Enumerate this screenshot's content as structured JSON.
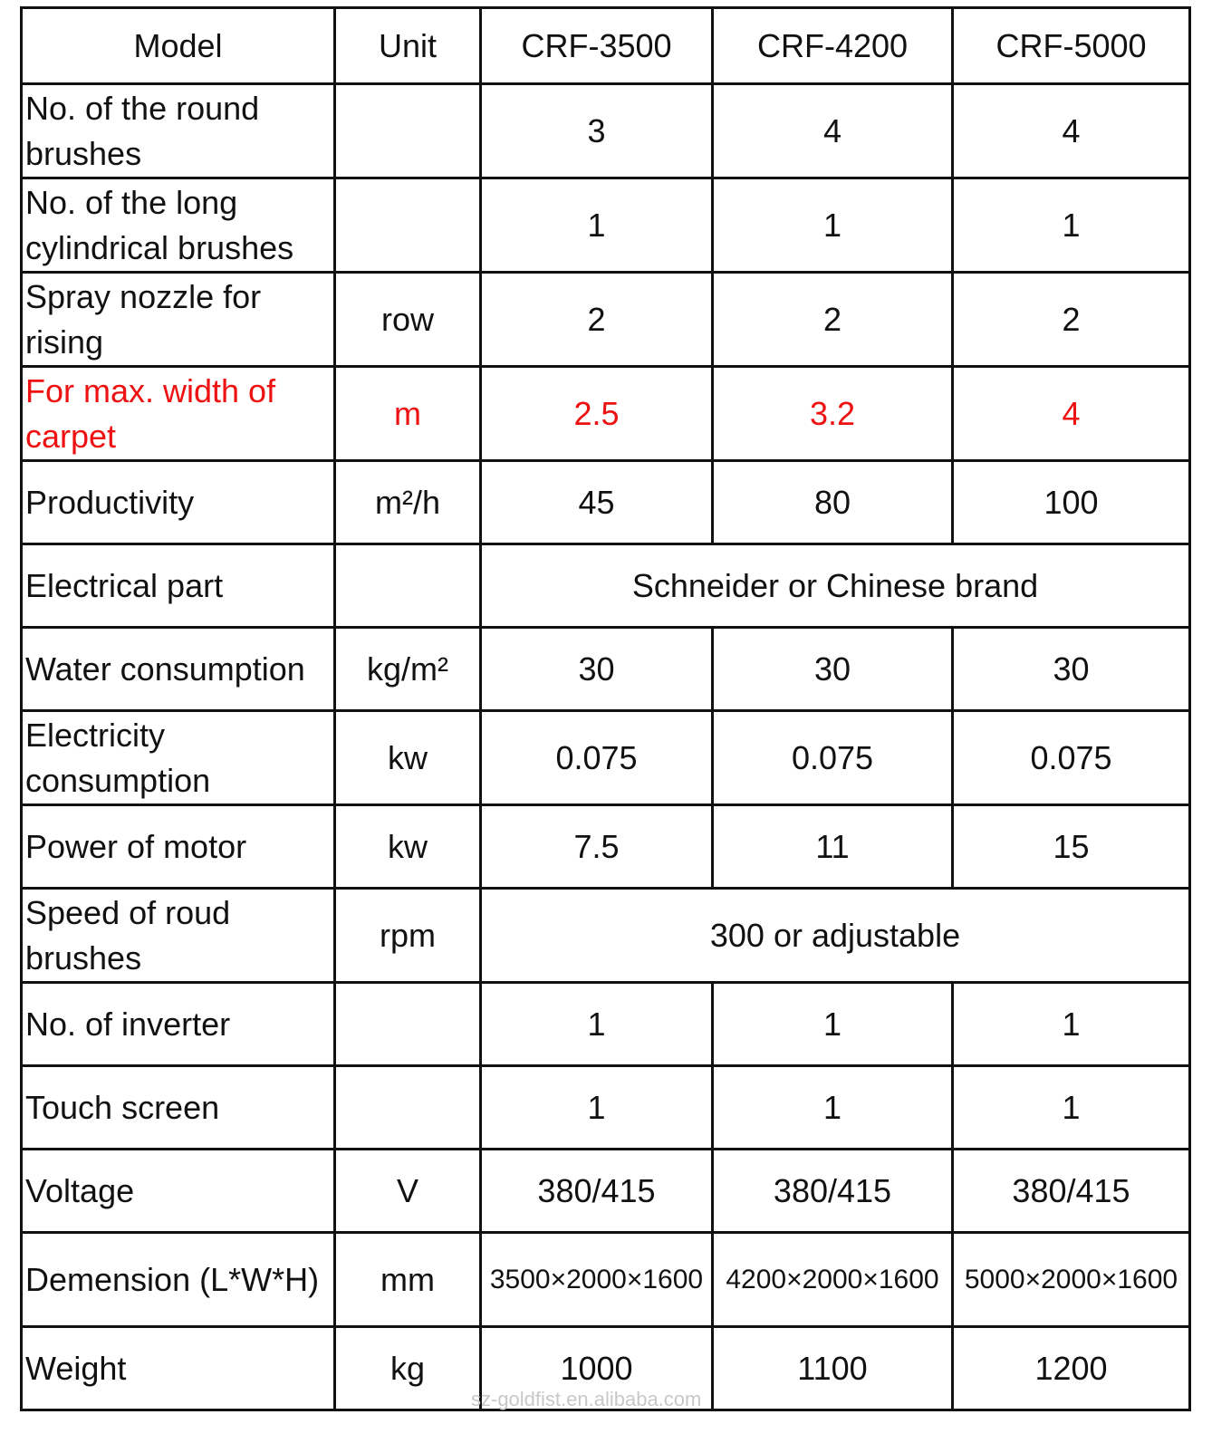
{
  "table": {
    "columns": [
      "Model",
      "Unit",
      "CRF-3500",
      "CRF-4200",
      "CRF-5000"
    ],
    "rows": [
      {
        "param": "No. of the round brushes",
        "unit": "",
        "values": [
          "3",
          "4",
          "4"
        ]
      },
      {
        "param": "No. of the long cylindrical brushes",
        "unit": "",
        "values": [
          "1",
          "1",
          "1"
        ]
      },
      {
        "param": "Spray nozzle for rising",
        "unit": "row",
        "values": [
          "2",
          "2",
          "2"
        ]
      },
      {
        "param": "For max. width of carpet",
        "unit": "m",
        "values": [
          "2.5",
          "3.2",
          "4"
        ],
        "highlight_color": "#ee1111"
      },
      {
        "param": "Productivity",
        "unit": "m²/h",
        "values": [
          "45",
          "80",
          "100"
        ]
      },
      {
        "param": "Electrical part",
        "unit": "",
        "merged_value": "Schneider or Chinese brand"
      },
      {
        "param": "Water consumption",
        "unit": "kg/m²",
        "values": [
          "30",
          "30",
          "30"
        ]
      },
      {
        "param": "Electricity consumption",
        "unit": "kw",
        "values": [
          "0.075",
          "0.075",
          "0.075"
        ]
      },
      {
        "param": "Power of motor",
        "unit": "kw",
        "values": [
          "7.5",
          "11",
          "15"
        ]
      },
      {
        "param": "Speed of roud brushes",
        "unit": "rpm",
        "merged_value": "300 or adjustable"
      },
      {
        "param": "No. of inverter",
        "unit": "",
        "values": [
          "1",
          "1",
          "1"
        ]
      },
      {
        "param": "Touch screen",
        "unit": "",
        "values": [
          "1",
          "1",
          "1"
        ]
      },
      {
        "param": "Voltage",
        "unit": "V",
        "values": [
          "380/415",
          "380/415",
          "380/415"
        ]
      },
      {
        "param": "Demension (L*W*H)",
        "unit": "mm",
        "values": [
          "3500×2000×1600",
          "4200×2000×1600",
          "5000×2000×1600"
        ]
      },
      {
        "param": "Weight",
        "unit": "kg",
        "values": [
          "1000",
          "1100",
          "1200"
        ]
      }
    ]
  },
  "watermark": "sz-goldfist.en.alibaba.com"
}
